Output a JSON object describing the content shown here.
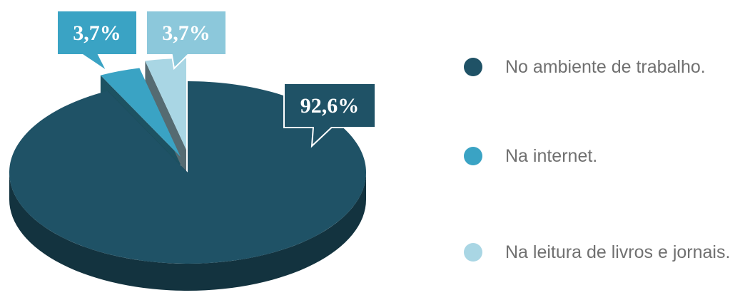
{
  "chart_data": {
    "type": "pie",
    "title": "",
    "slices": [
      {
        "label": "No ambiente de trabalho.",
        "value": 92.6,
        "display": "92,6%",
        "color": "#1f5266"
      },
      {
        "label": "Na internet.",
        "value": 3.7,
        "display": "3,7%",
        "color": "#3aa3c4"
      },
      {
        "label": "Na leitura de livros e jornais.",
        "value": 3.7,
        "display": "3,7%",
        "color": "#a9d6e4"
      }
    ],
    "legend_position": "right"
  }
}
